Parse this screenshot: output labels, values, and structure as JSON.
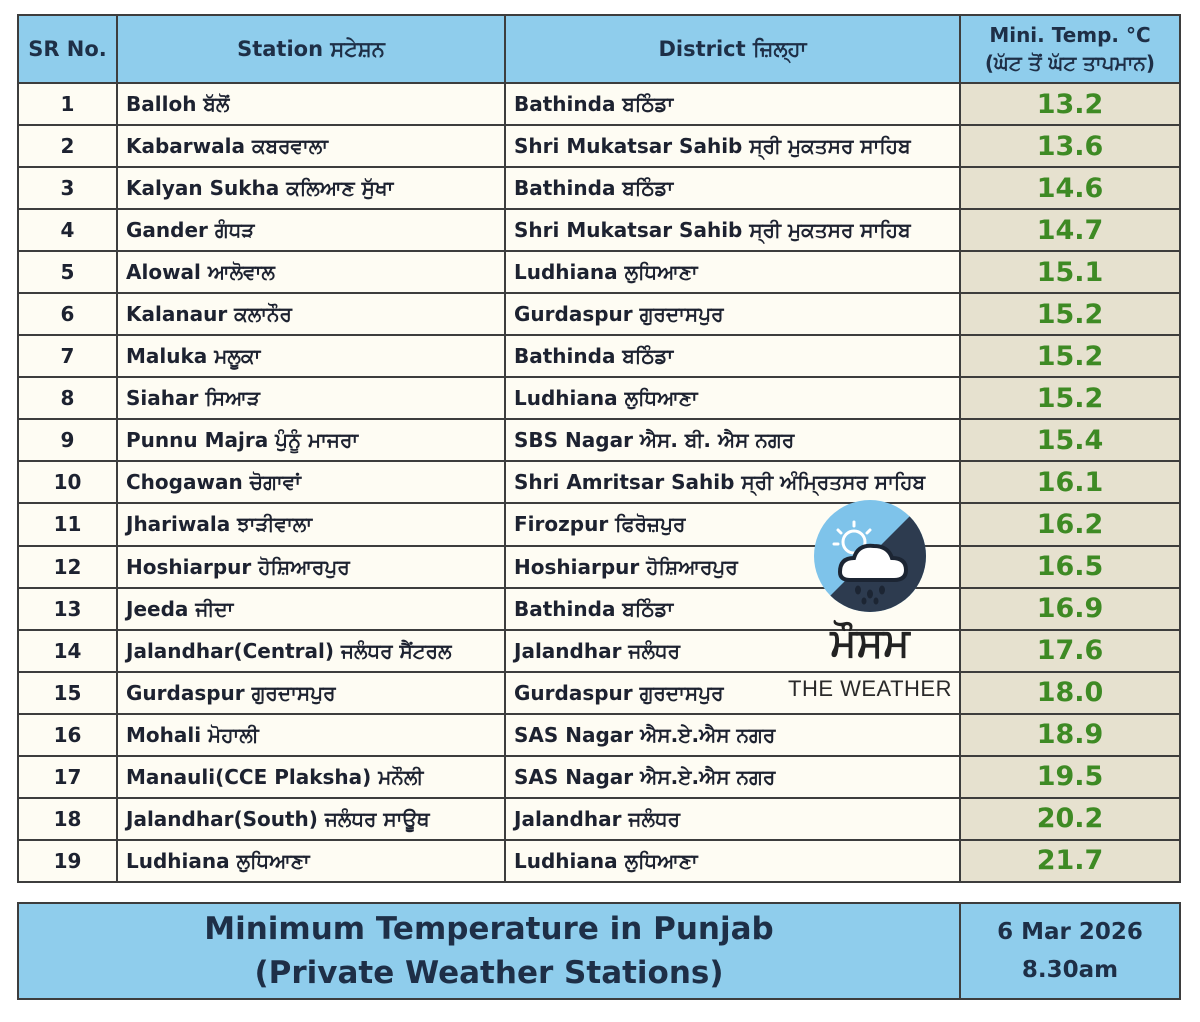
{
  "header": {
    "sr": "SR No.",
    "station": "Station ਸਟੇਸ਼ਨ",
    "district": "District ਜ਼ਿਲ੍ਹਾ",
    "temp_line1": "Mini. Temp. °C",
    "temp_line2": "(ਘੱਟ ਤੋਂ ਘੱਟ ਤਾਪਮਾਨ)"
  },
  "rows": [
    {
      "sr": "1",
      "station": "Balloh ਬੱਲੋਂ",
      "district": "Bathinda ਬਠਿੰਡਾ",
      "temp": "13.2"
    },
    {
      "sr": "2",
      "station": "Kabarwala ਕਬਰਵਾਲਾ",
      "district": "Shri Mukatsar Sahib ਸ੍ਰੀ ਮੁਕਤਸਰ ਸਾਹਿਬ",
      "temp": "13.6"
    },
    {
      "sr": "3",
      "station": "Kalyan Sukha ਕਲਿਆਣ ਸੁੱਖਾ",
      "district": "Bathinda ਬਠਿੰਡਾ",
      "temp": "14.6"
    },
    {
      "sr": "4",
      "station": "Gander ਗੰਧੜ",
      "district": "Shri Mukatsar Sahib ਸ੍ਰੀ ਮੁਕਤਸਰ ਸਾਹਿਬ",
      "temp": "14.7"
    },
    {
      "sr": "5",
      "station": "Alowal ਆਲੋਵਾਲ",
      "district": "Ludhiana ਲੁਧਿਆਣਾ",
      "temp": "15.1"
    },
    {
      "sr": "6",
      "station": "Kalanaur ਕਲਾਨੌਰ",
      "district": "Gurdaspur ਗੁਰਦਾਸਪੁਰ",
      "temp": "15.2"
    },
    {
      "sr": "7",
      "station": "Maluka ਮਲੂਕਾ",
      "district": "Bathinda ਬਠਿੰਡਾ",
      "temp": "15.2"
    },
    {
      "sr": "8",
      "station": "Siahar ਸਿਆੜ",
      "district": "Ludhiana ਲੁਧਿਆਣਾ",
      "temp": "15.2"
    },
    {
      "sr": "9",
      "station": "Punnu Majra ਪੁੰਨੂੰ ਮਾਜਰਾ",
      "district": "SBS Nagar ਐਸ. ਬੀ. ਐਸ ਨਗਰ",
      "temp": "15.4"
    },
    {
      "sr": "10",
      "station": "Chogawan ਚੋਗਾਵਾਂ",
      "district": "Shri Amritsar Sahib ਸ੍ਰੀ ਅੰਮ੍ਰਿਤਸਰ ਸਾਹਿਬ",
      "temp": "16.1"
    },
    {
      "sr": "11",
      "station": "Jhariwala ਝਾੜੀਵਾਲਾ",
      "district": "Firozpur ਫਿਰੋਜ਼ਪੁਰ",
      "temp": "16.2"
    },
    {
      "sr": "12",
      "station": "Hoshiarpur ਹੋਸ਼ਿਆਰਪੁਰ",
      "district": "Hoshiarpur ਹੋਸ਼ਿਆਰਪੁਰ",
      "temp": "16.5"
    },
    {
      "sr": "13",
      "station": "Jeeda ਜੀਦਾ",
      "district": "Bathinda ਬਠਿੰਡਾ",
      "temp": "16.9"
    },
    {
      "sr": "14",
      "station": "Jalandhar(Central) ਜਲੰਧਰ ਸੈਂਟਰਲ",
      "district": "Jalandhar ਜਲੰਧਰ",
      "temp": "17.6"
    },
    {
      "sr": "15",
      "station": "Gurdaspur ਗੁਰਦਾਸਪੁਰ",
      "district": "Gurdaspur ਗੁਰਦਾਸਪੁਰ",
      "temp": "18.0"
    },
    {
      "sr": "16",
      "station": "Mohali ਮੋਹਾਲੀ",
      "district": "SAS Nagar ਐਸ.ਏ.ਐਸ  ਨਗਰ",
      "temp": "18.9"
    },
    {
      "sr": "17",
      "station": "Manauli(CCE Plaksha) ਮਨੌਲੀ",
      "district": "SAS Nagar ਐਸ.ਏ.ਐਸ  ਨਗਰ",
      "temp": "19.5"
    },
    {
      "sr": "18",
      "station": "Jalandhar(South) ਜਲੰਧਰ ਸਾਊਥ",
      "district": "Jalandhar ਜਲੰਧਰ",
      "temp": "20.2"
    },
    {
      "sr": "19",
      "station": "Ludhiana ਲੁਧਿਆਣਾ",
      "district": "Ludhiana ਲੁਧਿਆਣਾ",
      "temp": "21.7"
    }
  ],
  "footer": {
    "title_line1": "Minimum Temperature in Punjab",
    "title_line2": "(Private Weather Stations)",
    "date": "6 Mar 2026",
    "time": "8.30am"
  },
  "logo": {
    "punjabi": "ਮੌਸਮ",
    "english": "THE WEATHER",
    "icon": "weather-cloud-rain-sun-icon"
  },
  "colors": {
    "header_bg": "#8fcdec",
    "row_bg": "#fefcf3",
    "temp_cell_bg": "#e6e1cf",
    "temp_text": "#3e8a24",
    "text": "#1d2230",
    "border": "#3d3d3d"
  }
}
